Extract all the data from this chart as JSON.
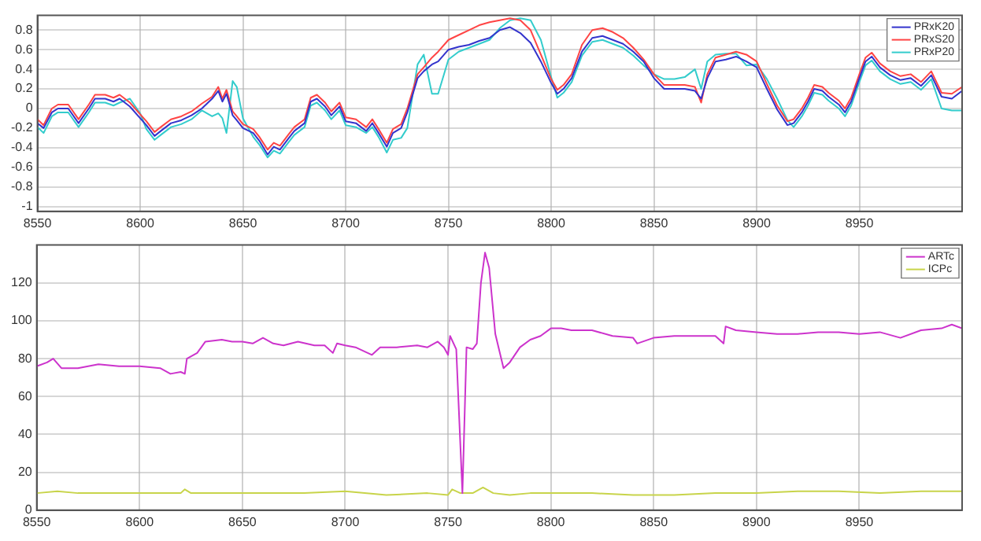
{
  "chart_data": [
    {
      "type": "line",
      "x": [
        8550,
        8553,
        8557,
        8560,
        8565,
        8570,
        8575,
        8578,
        8583,
        8587,
        8590,
        8595,
        8600,
        8603,
        8607,
        8610,
        8615,
        8620,
        8625,
        8630,
        8635,
        8638,
        8640,
        8642,
        8645,
        8647,
        8650,
        8655,
        8658,
        8662,
        8665,
        8668,
        8672,
        8675,
        8680,
        8683,
        8686,
        8690,
        8693,
        8697,
        8700,
        8705,
        8710,
        8713,
        8716,
        8720,
        8723,
        8727,
        8730,
        8735,
        8738,
        8742,
        8745,
        8750,
        8755,
        8760,
        8765,
        8770,
        8775,
        8780,
        8785,
        8790,
        8795,
        8800,
        8803,
        8806,
        8810,
        8815,
        8820,
        8825,
        8830,
        8835,
        8840,
        8845,
        8850,
        8855,
        8860,
        8865,
        8870,
        8873,
        8876,
        8880,
        8885,
        8890,
        8895,
        8900,
        8905,
        8910,
        8915,
        8918,
        8922,
        8925,
        8928,
        8932,
        8935,
        8940,
        8943,
        8946,
        8950,
        8953,
        8956,
        8960,
        8965,
        8970,
        8975,
        8980,
        8985,
        8990,
        8995,
        9000
      ],
      "series": [
        {
          "name": "PRxK20",
          "color": "#3333cc",
          "values": [
            -0.15,
            -0.2,
            -0.04,
            0,
            0,
            -0.15,
            0,
            0.1,
            0.1,
            0.07,
            0.1,
            0.02,
            -0.1,
            -0.17,
            -0.28,
            -0.23,
            -0.15,
            -0.12,
            -0.07,
            0,
            0.1,
            0.18,
            0.07,
            0.15,
            -0.07,
            -0.12,
            -0.2,
            -0.25,
            -0.33,
            -0.47,
            -0.39,
            -0.42,
            -0.31,
            -0.23,
            -0.15,
            0.07,
            0.1,
            0.02,
            -0.07,
            0.02,
            -0.13,
            -0.15,
            -0.23,
            -0.15,
            -0.25,
            -0.39,
            -0.25,
            -0.2,
            -0.04,
            0.31,
            0.38,
            0.45,
            0.48,
            0.6,
            0.63,
            0.65,
            0.69,
            0.72,
            0.8,
            0.83,
            0.77,
            0.67,
            0.48,
            0.26,
            0.15,
            0.2,
            0.31,
            0.58,
            0.72,
            0.74,
            0.7,
            0.66,
            0.58,
            0.48,
            0.31,
            0.2,
            0.2,
            0.2,
            0.18,
            0.1,
            0.31,
            0.48,
            0.5,
            0.53,
            0.48,
            0.42,
            0.2,
            -0.01,
            -0.17,
            -0.15,
            -0.04,
            0.07,
            0.2,
            0.18,
            0.12,
            0.04,
            -0.04,
            0.07,
            0.31,
            0.48,
            0.53,
            0.42,
            0.34,
            0.29,
            0.31,
            0.23,
            0.34,
            0.12,
            0.1,
            0.18
          ]
        },
        {
          "name": "PRxS20",
          "color": "#ff4444",
          "values": [
            -0.11,
            -0.17,
            0,
            0.04,
            0.04,
            -0.11,
            0.04,
            0.14,
            0.14,
            0.11,
            0.14,
            0.06,
            -0.06,
            -0.13,
            -0.24,
            -0.19,
            -0.11,
            -0.08,
            -0.03,
            0.05,
            0.12,
            0.22,
            0.1,
            0.19,
            -0.03,
            -0.08,
            -0.16,
            -0.21,
            -0.29,
            -0.42,
            -0.35,
            -0.38,
            -0.27,
            -0.19,
            -0.11,
            0.11,
            0.14,
            0.06,
            -0.03,
            0.06,
            -0.09,
            -0.11,
            -0.19,
            -0.11,
            -0.21,
            -0.35,
            -0.21,
            -0.16,
            0,
            0.35,
            0.42,
            0.52,
            0.58,
            0.7,
            0.75,
            0.8,
            0.85,
            0.88,
            0.9,
            0.92,
            0.9,
            0.8,
            0.55,
            0.3,
            0.19,
            0.24,
            0.35,
            0.65,
            0.8,
            0.82,
            0.78,
            0.72,
            0.62,
            0.5,
            0.35,
            0.24,
            0.24,
            0.24,
            0.22,
            0.06,
            0.35,
            0.52,
            0.55,
            0.58,
            0.55,
            0.48,
            0.25,
            0.03,
            -0.13,
            -0.11,
            0,
            0.11,
            0.24,
            0.22,
            0.16,
            0.08,
            0,
            0.11,
            0.35,
            0.52,
            0.57,
            0.46,
            0.38,
            0.33,
            0.35,
            0.27,
            0.38,
            0.16,
            0.15,
            0.22
          ]
        },
        {
          "name": "PRxP20",
          "color": "#33cccc",
          "values": [
            -0.19,
            -0.25,
            -0.08,
            -0.04,
            -0.04,
            -0.19,
            -0.04,
            0.06,
            0.06,
            0.03,
            0.06,
            0.1,
            -0.05,
            -0.21,
            -0.32,
            -0.27,
            -0.19,
            -0.16,
            -0.11,
            -0.02,
            -0.08,
            -0.05,
            -0.1,
            -0.25,
            0.28,
            0.22,
            -0.1,
            -0.29,
            -0.37,
            -0.5,
            -0.43,
            -0.46,
            -0.35,
            -0.27,
            -0.19,
            0.03,
            0.06,
            -0.02,
            -0.11,
            -0.02,
            -0.17,
            -0.19,
            -0.25,
            -0.19,
            -0.29,
            -0.45,
            -0.32,
            -0.3,
            -0.2,
            0.45,
            0.55,
            0.15,
            0.15,
            0.5,
            0.58,
            0.62,
            0.66,
            0.7,
            0.82,
            0.9,
            0.92,
            0.9,
            0.7,
            0.32,
            0.11,
            0.16,
            0.27,
            0.54,
            0.68,
            0.7,
            0.66,
            0.62,
            0.54,
            0.44,
            0.35,
            0.3,
            0.3,
            0.32,
            0.4,
            0.2,
            0.48,
            0.55,
            0.56,
            0.56,
            0.44,
            0.45,
            0.3,
            0.1,
            -0.12,
            -0.19,
            -0.08,
            0.03,
            0.16,
            0.14,
            0.08,
            0,
            -0.08,
            0.03,
            0.27,
            0.44,
            0.49,
            0.38,
            0.3,
            0.25,
            0.27,
            0.19,
            0.3,
            0,
            -0.02,
            -0.02
          ]
        }
      ],
      "xlim": [
        8550,
        9000
      ],
      "xticks": [
        8550,
        8600,
        8650,
        8700,
        8750,
        8800,
        8850,
        8900,
        8950
      ],
      "ylim": [
        -1.05,
        0.95
      ],
      "yticks": [
        -1,
        -0.8,
        -0.6,
        -0.4,
        -0.2,
        0,
        0.2,
        0.4,
        0.6,
        0.8
      ],
      "grid": true,
      "legend": "top right",
      "marker": "none",
      "line_style": "solid"
    },
    {
      "type": "line",
      "series": [
        {
          "name": "ARTc",
          "color": "#cc33cc",
          "x": [
            8550,
            8555,
            8558,
            8562,
            8570,
            8580,
            8590,
            8600,
            8610,
            8615,
            8620,
            8622,
            8623,
            8628,
            8632,
            8640,
            8645,
            8650,
            8655,
            8660,
            8665,
            8670,
            8677,
            8685,
            8690,
            8694,
            8696,
            8700,
            8705,
            8713,
            8717,
            8725,
            8735,
            8740,
            8745,
            8748,
            8750,
            8751,
            8754,
            8757,
            8759,
            8762,
            8764,
            8766,
            8768,
            8770,
            8773,
            8777,
            8780,
            8785,
            8790,
            8795,
            8800,
            8805,
            8810,
            8820,
            8830,
            8840,
            8842,
            8850,
            8860,
            8870,
            8880,
            8884,
            8885,
            8890,
            8900,
            8910,
            8920,
            8930,
            8940,
            8950,
            8960,
            8970,
            8980,
            8990,
            8995,
            9000
          ],
          "values": [
            76,
            78,
            80,
            75,
            75,
            77,
            76,
            76,
            75,
            72,
            73,
            72,
            80,
            83,
            89,
            90,
            89,
            89,
            88,
            91,
            88,
            87,
            89,
            87,
            87,
            83,
            88,
            87,
            86,
            82,
            86,
            86,
            87,
            86,
            89,
            86,
            82,
            92,
            85,
            9,
            86,
            85,
            88,
            120,
            136,
            128,
            93,
            75,
            78,
            86,
            90,
            92,
            96,
            96,
            95,
            95,
            92,
            91,
            88,
            91,
            92,
            92,
            92,
            88,
            97,
            95,
            94,
            93,
            93,
            94,
            94,
            93,
            94,
            91,
            95,
            96,
            98,
            96
          ]
        },
        {
          "name": "ICPc",
          "color": "#c8d44a",
          "x": [
            8550,
            8560,
            8570,
            8580,
            8590,
            8600,
            8610,
            8620,
            8622,
            8625,
            8640,
            8660,
            8680,
            8700,
            8720,
            8740,
            8750,
            8752,
            8756,
            8762,
            8767,
            8772,
            8780,
            8790,
            8800,
            8820,
            8840,
            8860,
            8880,
            8900,
            8920,
            8940,
            8960,
            8980,
            9000
          ],
          "values": [
            9,
            10,
            9,
            9,
            9,
            9,
            9,
            9,
            11,
            9,
            9,
            9,
            9,
            10,
            8,
            9,
            8,
            11,
            9,
            9,
            12,
            9,
            8,
            9,
            9,
            9,
            8,
            8,
            9,
            9,
            10,
            10,
            9,
            10,
            10
          ]
        }
      ],
      "xlim": [
        8550,
        9000
      ],
      "xticks": [
        8550,
        8600,
        8650,
        8700,
        8750,
        8800,
        8850,
        8900,
        8950
      ],
      "ylim": [
        0,
        140
      ],
      "yticks": [
        0,
        20,
        40,
        60,
        80,
        100,
        120
      ],
      "grid": true,
      "legend": "top right",
      "marker": "none",
      "line_style": "solid"
    }
  ]
}
